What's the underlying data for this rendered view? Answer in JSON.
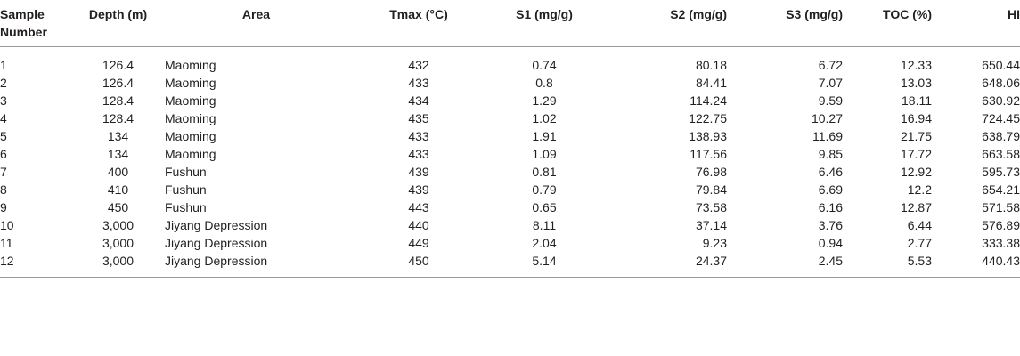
{
  "table": {
    "headers": {
      "sample": "Sample Number",
      "depth": "Depth (m)",
      "area": "Area",
      "tmax": "Tmax (°C)",
      "s1": "S1 (mg/g)",
      "s2": "S2 (mg/g)",
      "s3": "S3 (mg/g)",
      "toc": "TOC (%)",
      "hi": "HI"
    },
    "rows": [
      {
        "sample": "1",
        "depth": "126.4",
        "area": "Maoming",
        "tmax": "432",
        "s1": "0.74",
        "s2": "80.18",
        "s3": "6.72",
        "toc": "12.33",
        "hi": "650.44"
      },
      {
        "sample": "2",
        "depth": "126.4",
        "area": "Maoming",
        "tmax": "433",
        "s1": "0.8",
        "s2": "84.41",
        "s3": "7.07",
        "toc": "13.03",
        "hi": "648.06"
      },
      {
        "sample": "3",
        "depth": "128.4",
        "area": "Maoming",
        "tmax": "434",
        "s1": "1.29",
        "s2": "114.24",
        "s3": "9.59",
        "toc": "18.11",
        "hi": "630.92"
      },
      {
        "sample": "4",
        "depth": "128.4",
        "area": "Maoming",
        "tmax": "435",
        "s1": "1.02",
        "s2": "122.75",
        "s3": "10.27",
        "toc": "16.94",
        "hi": "724.45"
      },
      {
        "sample": "5",
        "depth": "134",
        "area": "Maoming",
        "tmax": "433",
        "s1": "1.91",
        "s2": "138.93",
        "s3": "11.69",
        "toc": "21.75",
        "hi": "638.79"
      },
      {
        "sample": "6",
        "depth": "134",
        "area": "Maoming",
        "tmax": "433",
        "s1": "1.09",
        "s2": "117.56",
        "s3": "9.85",
        "toc": "17.72",
        "hi": "663.58"
      },
      {
        "sample": "7",
        "depth": "400",
        "area": "Fushun",
        "tmax": "439",
        "s1": "0.81",
        "s2": "76.98",
        "s3": "6.46",
        "toc": "12.92",
        "hi": "595.73"
      },
      {
        "sample": "8",
        "depth": "410",
        "area": "Fushun",
        "tmax": "439",
        "s1": "0.79",
        "s2": "79.84",
        "s3": "6.69",
        "toc": "12.2",
        "hi": "654.21"
      },
      {
        "sample": "9",
        "depth": "450",
        "area": "Fushun",
        "tmax": "443",
        "s1": "0.65",
        "s2": "73.58",
        "s3": "6.16",
        "toc": "12.87",
        "hi": "571.58"
      },
      {
        "sample": "10",
        "depth": "3,000",
        "area": "Jiyang Depression",
        "tmax": "440",
        "s1": "8.11",
        "s2": "37.14",
        "s3": "3.76",
        "toc": "6.44",
        "hi": "576.89"
      },
      {
        "sample": "11",
        "depth": "3,000",
        "area": "Jiyang Depression",
        "tmax": "449",
        "s1": "2.04",
        "s2": "9.23",
        "s3": "0.94",
        "toc": "2.77",
        "hi": "333.38"
      },
      {
        "sample": "12",
        "depth": "3,000",
        "area": "Jiyang Depression",
        "tmax": "450",
        "s1": "5.14",
        "s2": "24.37",
        "s3": "2.45",
        "toc": "5.53",
        "hi": "440.43"
      }
    ]
  }
}
